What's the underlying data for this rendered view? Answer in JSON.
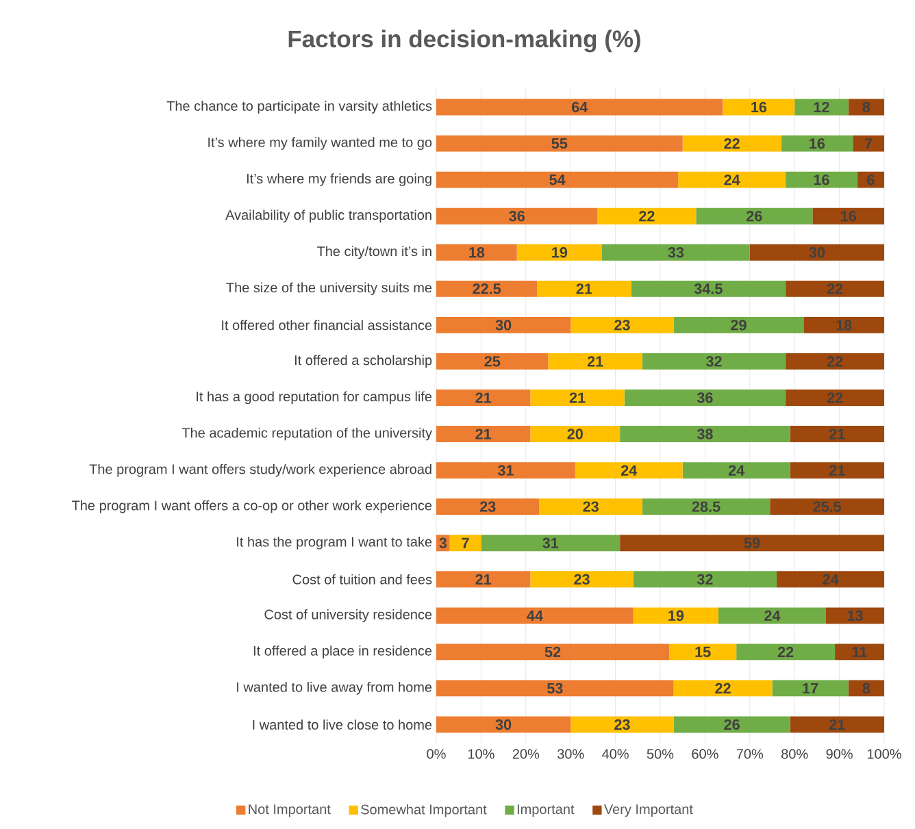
{
  "chart_data": {
    "type": "bar",
    "orientation": "horizontal",
    "stacked": true,
    "title": "Factors in decision-making (%)",
    "categories": [
      "The chance to participate in varsity athletics",
      "It’s where my family wanted me to go",
      "It’s where my friends are going",
      "Availability of public transportation",
      "The city/town it’s in",
      "The size of the university suits me",
      "It offered other financial assistance",
      "It offered a scholarship",
      "It has a good reputation for campus life",
      "The academic reputation of the university",
      "The program I want offers study/work experience abroad",
      "The program I want offers a co-op or other work experience",
      "It has the program I want to take",
      "Cost of tuition and fees",
      "Cost of university residence",
      "It offered a place in residence",
      "I wanted to live away from home",
      "I wanted to live close to home"
    ],
    "series": [
      {
        "name": "Not Important",
        "color": "#ed7d31",
        "values": [
          64,
          55,
          54,
          36,
          18,
          22.5,
          30,
          25,
          21,
          21,
          31,
          23,
          3,
          21,
          44,
          52,
          53,
          30
        ]
      },
      {
        "name": "Somewhat Important",
        "color": "#ffc000",
        "values": [
          16,
          22,
          24,
          22,
          19,
          21,
          23,
          21,
          21,
          20,
          24,
          23,
          7,
          23,
          19,
          15,
          22,
          23
        ]
      },
      {
        "name": "Important",
        "color": "#70ad47",
        "values": [
          12,
          16,
          16,
          26,
          33,
          34.5,
          29,
          32,
          36,
          38,
          24,
          28.5,
          31,
          32,
          24,
          22,
          17,
          26
        ]
      },
      {
        "name": "Very Important",
        "color": "#9e480e",
        "values": [
          8,
          7,
          6,
          16,
          30,
          22,
          18,
          22,
          22,
          21,
          21,
          25.5,
          59,
          24,
          13,
          11,
          8,
          21
        ]
      }
    ],
    "xlim": [
      0,
      100
    ],
    "xticks": [
      {
        "value": 0,
        "label": "0%"
      },
      {
        "value": 10,
        "label": "10%"
      },
      {
        "value": 20,
        "label": "20%"
      },
      {
        "value": 30,
        "label": "30%"
      },
      {
        "value": 40,
        "label": "40%"
      },
      {
        "value": 50,
        "label": "50%"
      },
      {
        "value": 60,
        "label": "60%"
      },
      {
        "value": 70,
        "label": "70%"
      },
      {
        "value": 80,
        "label": "80%"
      },
      {
        "value": 90,
        "label": "90%"
      },
      {
        "value": 100,
        "label": "100%"
      }
    ],
    "grid": "x",
    "legend": "bottom",
    "data_labels": true
  }
}
